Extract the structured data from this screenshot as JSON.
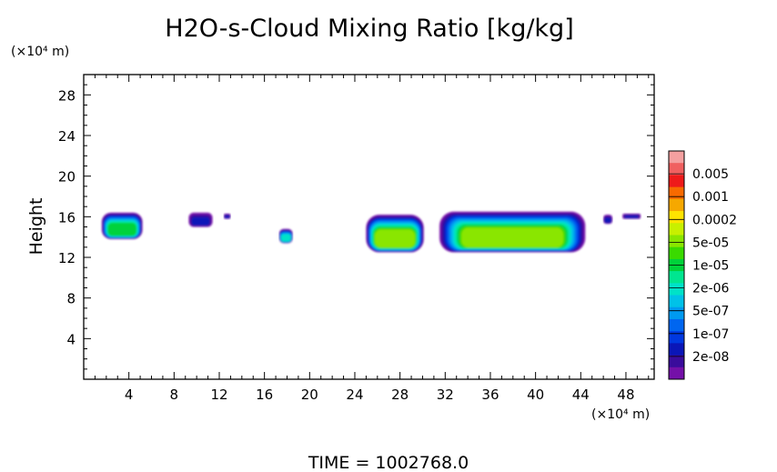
{
  "chart_data": {
    "type": "heatmap",
    "title": "H2O-s-Cloud Mixing Ratio [kg/kg]",
    "ylabel": "Height",
    "y_unit": "(×10⁴ m)",
    "x_unit": "(×10⁴ m)",
    "xlim": [
      0,
      50.5
    ],
    "ylim": [
      0,
      30
    ],
    "x_ticks": [
      4,
      8,
      12,
      16,
      20,
      24,
      28,
      32,
      36,
      40,
      44,
      48
    ],
    "y_ticks": [
      4,
      8,
      12,
      16,
      20,
      24,
      28
    ],
    "grid": false,
    "footer": "TIME = 1002768.0",
    "colorbar": {
      "labels": [
        "0.005",
        "0.001",
        "0.0002",
        "5e-05",
        "1e-05",
        "2e-06",
        "5e-07",
        "1e-07",
        "2e-08"
      ],
      "colors": [
        "#f4a0a0",
        "#f06060",
        "#ee1a1a",
        "#f86a00",
        "#f6a800",
        "#ffe400",
        "#c8f000",
        "#8ae600",
        "#3ada00",
        "#00d23a",
        "#00e690",
        "#00e2c8",
        "#00c2e8",
        "#009af0",
        "#0066f0",
        "#0038e0",
        "#0a16b8",
        "#3a0c9c",
        "#7410a8"
      ]
    },
    "clouds": [
      {
        "x": [
          1.6,
          5.2
        ],
        "y": [
          13.8,
          16.4
        ],
        "level": "1e-05"
      },
      {
        "x": [
          9.3,
          11.4
        ],
        "y": [
          15.0,
          16.4
        ],
        "level": "2e-08"
      },
      {
        "x": [
          12.4,
          13.0
        ],
        "y": [
          15.8,
          16.3
        ],
        "level": "2e-08"
      },
      {
        "x": [
          17.3,
          18.5
        ],
        "y": [
          13.4,
          14.8
        ],
        "level": "2e-06"
      },
      {
        "x": [
          25.0,
          30.1
        ],
        "y": [
          12.5,
          16.2
        ],
        "level": "5e-05"
      },
      {
        "x": [
          31.5,
          44.4
        ],
        "y": [
          12.5,
          16.5
        ],
        "level": "5e-05"
      },
      {
        "x": [
          46.0,
          46.8
        ],
        "y": [
          15.3,
          16.2
        ],
        "level": "2e-08"
      },
      {
        "x": [
          47.7,
          49.3
        ],
        "y": [
          15.8,
          16.3
        ],
        "level": "2e-08"
      }
    ]
  }
}
